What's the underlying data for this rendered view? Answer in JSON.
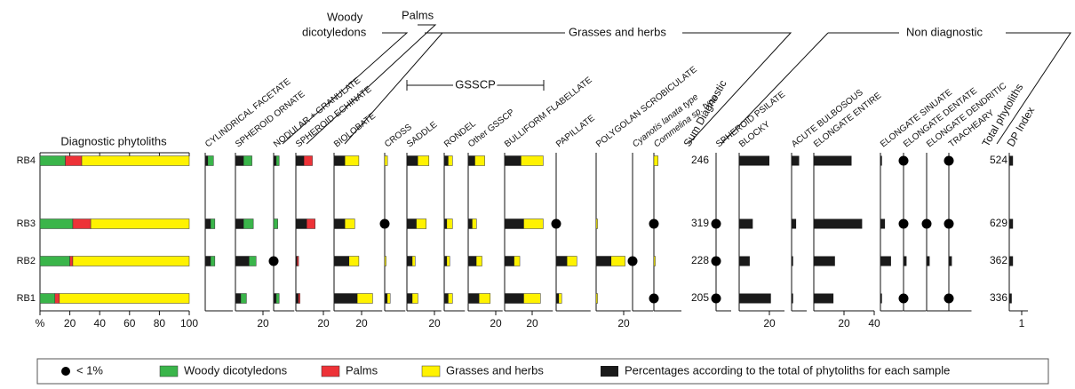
{
  "chart_data": {
    "type": "phytolith-diagram",
    "samples": [
      "RB4",
      "RB3",
      "RB2",
      "RB1"
    ],
    "groups": {
      "woody_1": "Woody",
      "woody_2": "dicotyledons",
      "palms": "Palms",
      "grasses": "Grasses and herbs",
      "non_diagnostic": "Non diagnostic",
      "gsscp": "GSSCP"
    },
    "diagnostic": {
      "title": "Diagnostic phytoliths",
      "xlim": [
        0,
        100
      ],
      "xticks": [
        {
          "value": 0,
          "label": "%"
        },
        20,
        40,
        60,
        80,
        100
      ],
      "series": [
        {
          "name": "Woody dicotyledons",
          "color": "#3ab54a",
          "values": [
            17,
            22,
            20,
            10
          ]
        },
        {
          "name": "Palms",
          "color": "#ed3237",
          "values": [
            11,
            12,
            2,
            3
          ]
        },
        {
          "name": "Grasses and herbs",
          "color": "#fff200",
          "values": [
            72,
            66,
            78,
            87
          ]
        }
      ]
    },
    "panels": [
      {
        "name": "CYLINDRICAL FACETATE",
        "color": "#3ab54a",
        "xlim": [
          0,
          20
        ],
        "values": [
          6,
          7,
          7,
          null
        ],
        "total_values": [
          2,
          4,
          4,
          null
        ]
      },
      {
        "name": "SPHEROID ORNATE",
        "color": "#3ab54a",
        "xlim": [
          0,
          25
        ],
        "xticks": [
          20
        ],
        "values": [
          12,
          13,
          15,
          8
        ],
        "total_values": [
          6,
          6,
          10,
          4
        ]
      },
      {
        "name": "NODULAR + GRANULATE",
        "color": "#3ab54a",
        "xlim": [
          0,
          15
        ],
        "values": [
          4,
          3,
          null,
          4
        ],
        "total_values": [
          2,
          null,
          null,
          2
        ],
        "lt1": [
          false,
          false,
          true,
          false
        ]
      },
      {
        "name": "SPHEROID ECHINATE",
        "color": "#ed3237",
        "xlim": [
          0,
          25
        ],
        "xticks": [
          20
        ],
        "values": [
          12,
          14,
          2,
          3
        ],
        "total_values": [
          6,
          8,
          1,
          2
        ]
      },
      {
        "name": "BIOLOBATE",
        "color": "#fff200",
        "xlim": [
          0,
          35
        ],
        "xticks": [
          20
        ],
        "values": [
          18,
          15,
          18,
          28
        ],
        "total_values": [
          8,
          8,
          11,
          17
        ]
      },
      {
        "name": "CROSS",
        "color": "#fff200",
        "xlim": [
          0,
          15
        ],
        "values": [
          2,
          null,
          1,
          4
        ],
        "total_values": [
          null,
          null,
          null,
          2
        ],
        "lt1": [
          false,
          true,
          false,
          false
        ]
      },
      {
        "name": "SADDLE",
        "color": "#fff200",
        "xlim": [
          0,
          25
        ],
        "xticks": [
          20
        ],
        "values": [
          16,
          14,
          6,
          8
        ],
        "total_values": [
          8,
          7,
          4,
          4
        ]
      },
      {
        "name": "RONDEL",
        "color": "#fff200",
        "xlim": [
          0,
          15
        ],
        "values": [
          6,
          6,
          4,
          6
        ],
        "total_values": [
          3,
          2,
          2,
          3
        ]
      },
      {
        "name": "Other GSSCP",
        "color": "#fff200",
        "xlim": [
          0,
          25
        ],
        "xticks": [
          20
        ],
        "values": [
          12,
          6,
          10,
          16
        ],
        "total_values": [
          5,
          3,
          6,
          8
        ]
      },
      {
        "name": "BULLIFORM FLABELLATE",
        "color": "#fff200",
        "xlim": [
          0,
          35
        ],
        "xticks": [
          20
        ],
        "values": [
          28,
          28,
          11,
          26
        ],
        "total_values": [
          12,
          14,
          7,
          14
        ]
      },
      {
        "name": "PAPILLATE",
        "color": "#fff200",
        "xlim": [
          0,
          25
        ],
        "values": [
          null,
          null,
          15,
          4
        ],
        "total_values": [
          null,
          null,
          8,
          2
        ],
        "lt1": [
          false,
          true,
          false,
          false
        ]
      },
      {
        "name": "POLYGOLAN SCROBICULATE",
        "color": "#fff200",
        "xlim": [
          0,
          25
        ],
        "xticks": [
          20
        ],
        "values": [
          null,
          1,
          21,
          1
        ],
        "total_values": [
          null,
          null,
          11,
          null
        ]
      },
      {
        "name": "Cyanotis lanata type",
        "color": "#fff200",
        "xlim": [
          0,
          15
        ],
        "values": [
          null,
          null,
          null,
          null
        ],
        "lt1": [
          false,
          false,
          true,
          false
        ]
      },
      {
        "name": "Commelina sp. type",
        "color": "#fff200",
        "xlim": [
          0,
          20
        ],
        "values": [
          3,
          null,
          1,
          null
        ],
        "lt1": [
          false,
          true,
          false,
          true
        ]
      },
      {
        "name": "SPHEROID PSILATE",
        "xlim": [
          0,
          10
        ],
        "total_values": [
          null,
          null,
          null,
          null
        ],
        "lt1": [
          false,
          true,
          true,
          true
        ]
      },
      {
        "name": "BLOCKY",
        "xlim": [
          0,
          30
        ],
        "xticks": [
          20
        ],
        "total_values": [
          20,
          9,
          7,
          21
        ]
      },
      {
        "name": "ACUTE BULBOSOUS",
        "xlim": [
          0,
          10
        ],
        "total_values": [
          5,
          3,
          1,
          1
        ]
      },
      {
        "name": "ELONGATE ENTIRE",
        "xlim": [
          0,
          40
        ],
        "xticks": [
          20,
          40
        ],
        "total_values": [
          25,
          32,
          14,
          13
        ]
      },
      {
        "name": "ELONGATE SINUATE",
        "xlim": [
          0,
          15
        ],
        "total_values": [
          1,
          3,
          7,
          1
        ]
      },
      {
        "name": "ELONGATE DENTATE",
        "xlim": [
          0,
          15
        ],
        "total_values": [
          null,
          null,
          2,
          null
        ],
        "lt1": [
          true,
          true,
          false,
          true
        ]
      },
      {
        "name": "ELONGATE DENDRITIC",
        "xlim": [
          0,
          15
        ],
        "total_values": [
          null,
          null,
          2,
          null
        ],
        "lt1": [
          false,
          true,
          false,
          false
        ]
      },
      {
        "name": "TRACHEARY",
        "xlim": [
          0,
          15
        ],
        "total_values": [
          null,
          null,
          2,
          null
        ],
        "lt1": [
          true,
          true,
          false,
          true
        ]
      }
    ],
    "sum_diagnostic": {
      "title": "Sum Diagnostic",
      "values": [
        246,
        319,
        228,
        205
      ]
    },
    "total_phytoliths": {
      "title": "Total phytoliths",
      "values": [
        524,
        629,
        362,
        336
      ]
    },
    "dp_index": {
      "title": "DP Index",
      "xlim": [
        0,
        1.5
      ],
      "xticks": [
        1
      ],
      "values": [
        0.3,
        0.3,
        0.3,
        0.2
      ]
    },
    "legend": {
      "dot_label": "< 1%",
      "total_label": "Percentages according to the total of phytoliths for each sample",
      "total_color": "#1a1a1a"
    }
  }
}
